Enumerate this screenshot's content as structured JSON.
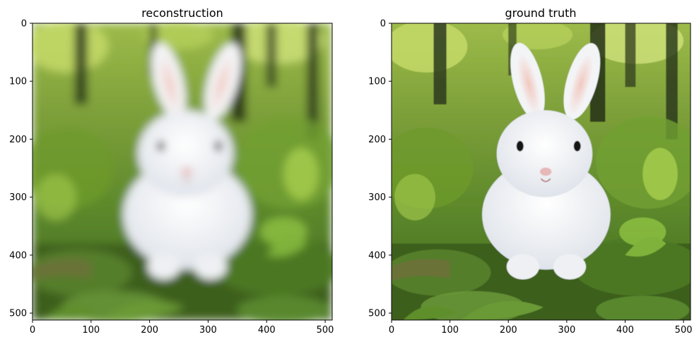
{
  "chart_data": [
    {
      "type": "image",
      "title": "reconstruction",
      "xlim": [
        0,
        512
      ],
      "ylim": [
        512,
        0
      ],
      "xticks": [
        0,
        100,
        200,
        300,
        400,
        500
      ],
      "yticks": [
        0,
        100,
        200,
        300,
        400,
        500
      ],
      "image_content": "blurred white rabbit sitting in green grass with forest background",
      "colors": {
        "rabbit": "#eef0f4",
        "ear": "#e2c2bd",
        "grass": "#5f8f2d",
        "trees": "#2e3a22"
      }
    },
    {
      "type": "image",
      "title": "ground truth",
      "xlim": [
        0,
        512
      ],
      "ylim": [
        512,
        0
      ],
      "xticks": [
        0,
        100,
        200,
        300,
        400,
        500
      ],
      "yticks": [
        0,
        100,
        200,
        300,
        400,
        500
      ],
      "image_content": "white rabbit sitting in green grass with forest background",
      "colors": {
        "rabbit": "#f6f7f9",
        "ear": "#eec6c0",
        "grass": "#4f7f22",
        "trees": "#263019"
      }
    }
  ]
}
